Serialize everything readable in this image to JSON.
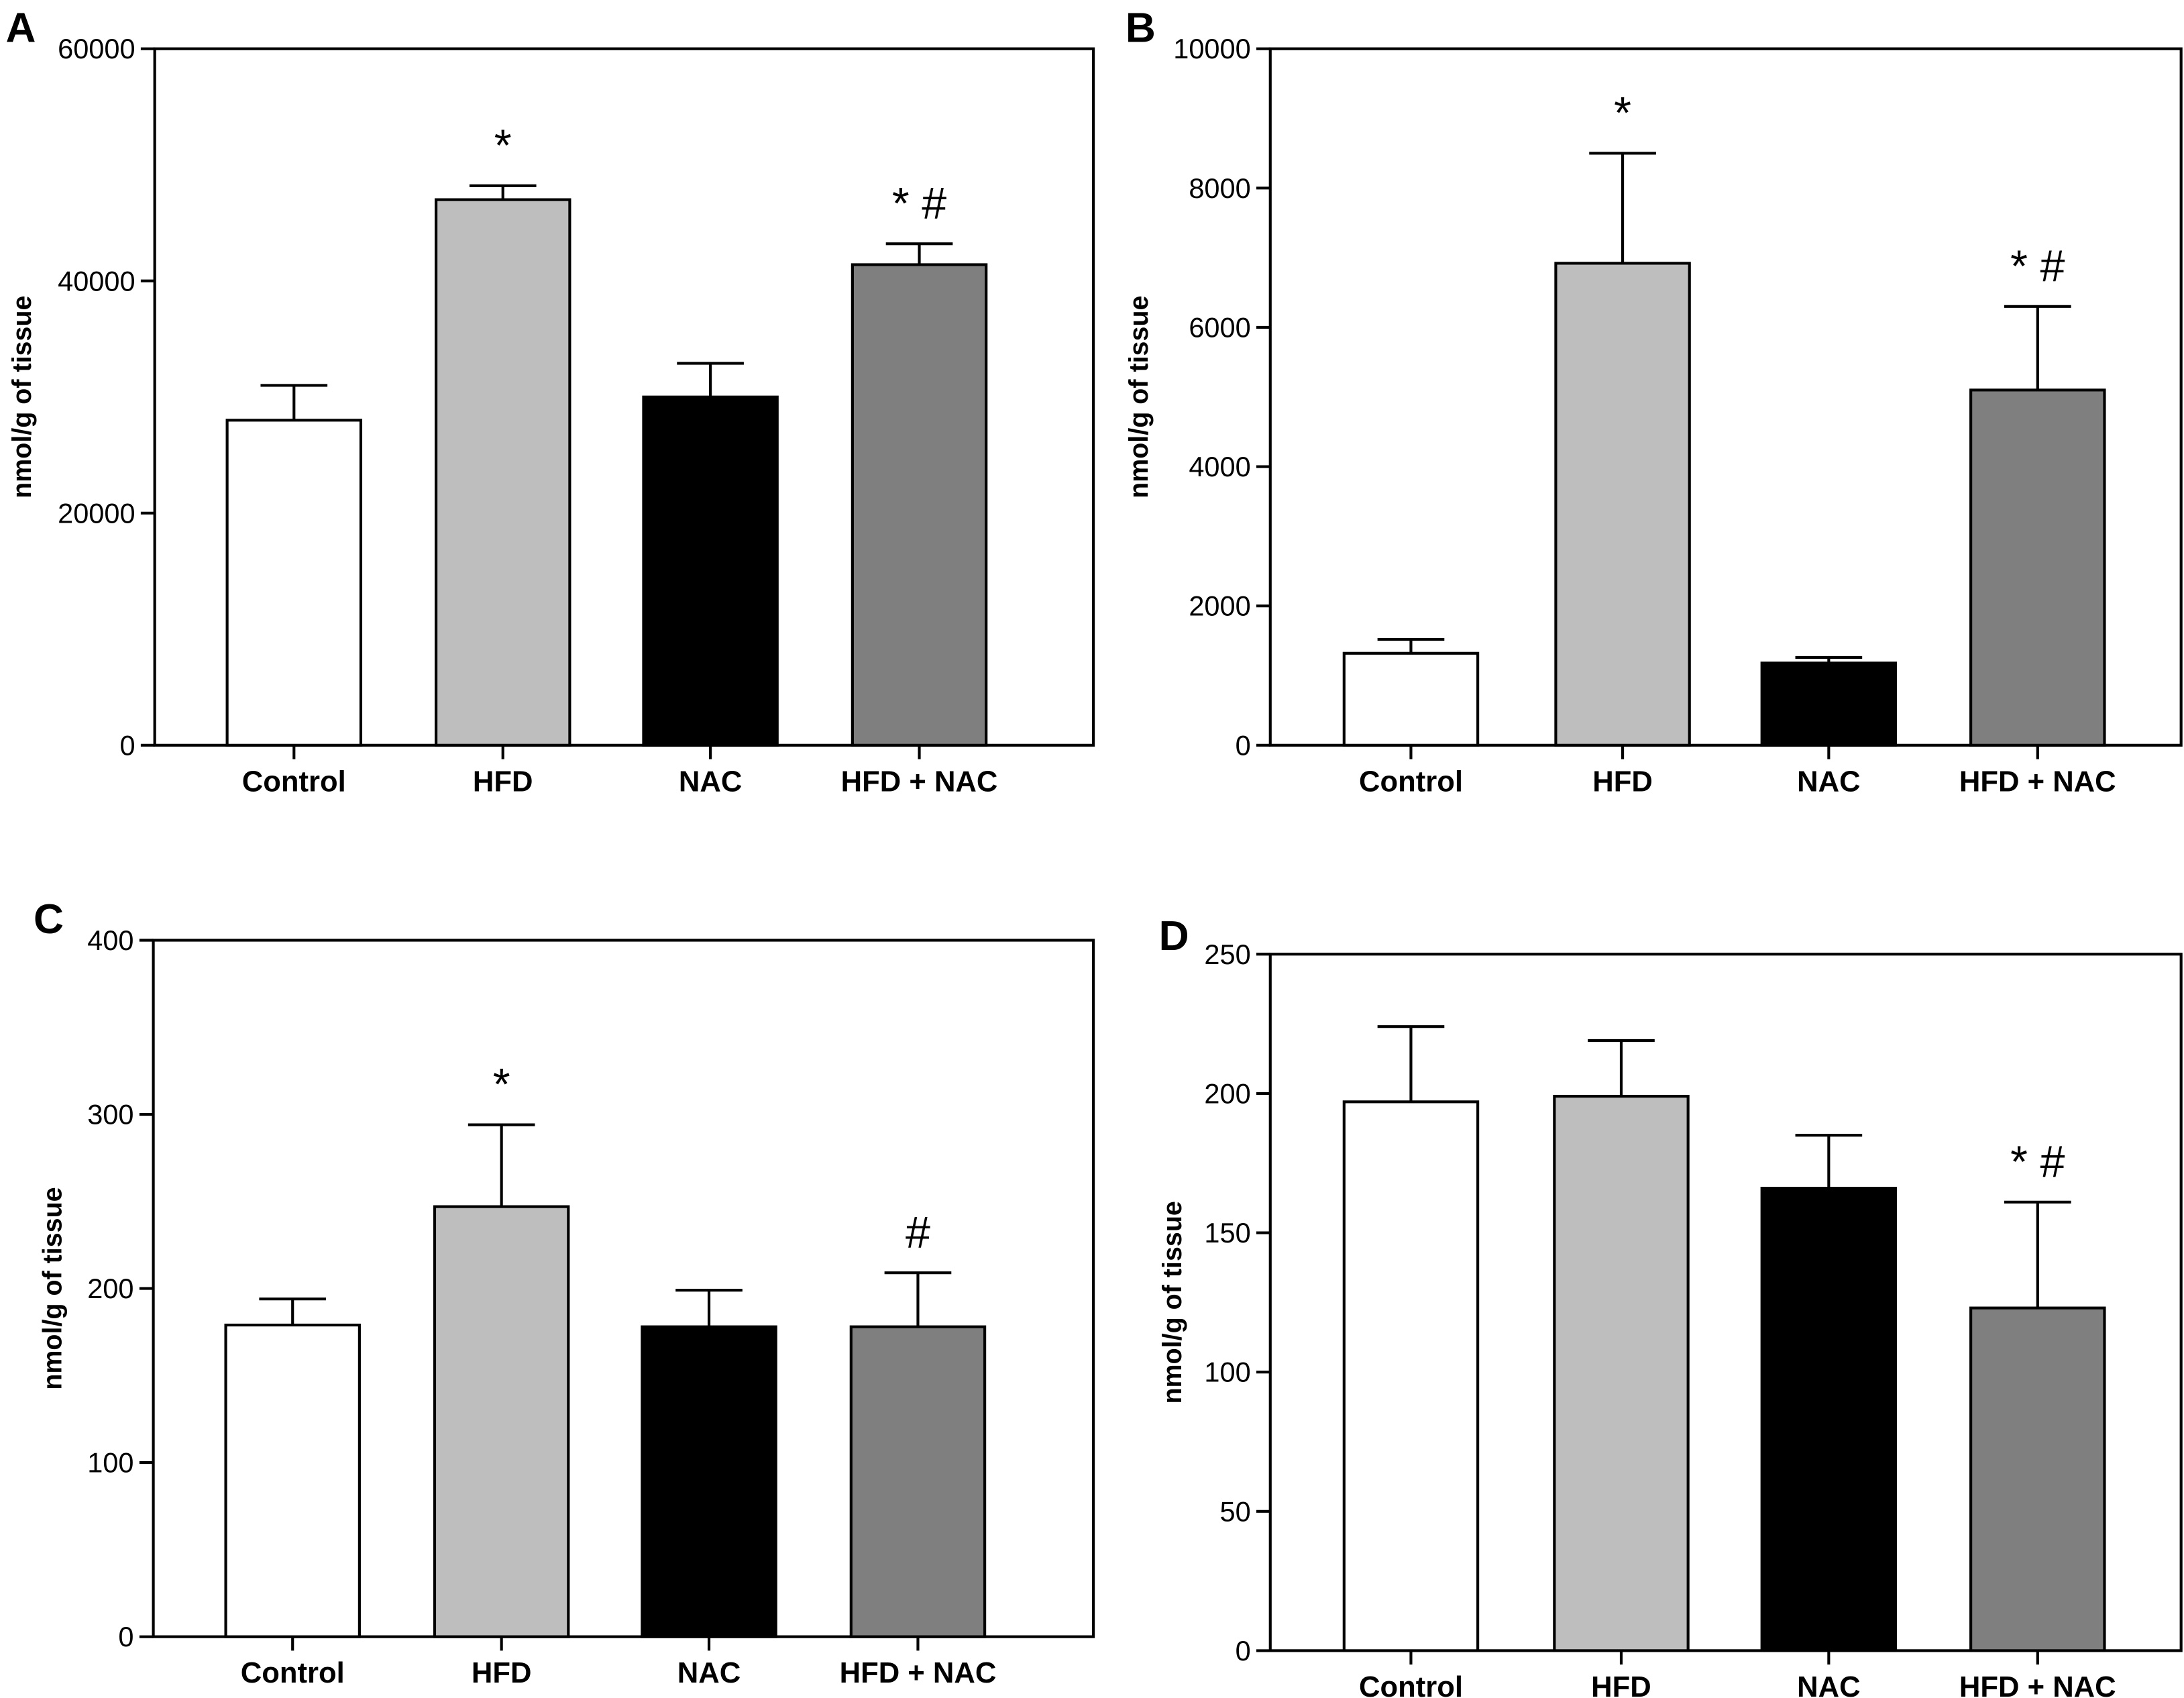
{
  "chart_data": [
    {
      "type": "bar",
      "panel_label": "A",
      "categories": [
        "Control",
        "HFD",
        "NAC",
        "HFD + NAC"
      ],
      "values": [
        28000,
        47000,
        30000,
        41400
      ],
      "error_upper": [
        31000,
        48200,
        32900,
        43200
      ],
      "annotations": [
        "",
        "*",
        "",
        "* #"
      ],
      "colors": [
        "#ffffff",
        "#bebebe",
        "#000000",
        "#7f7f7f"
      ],
      "xlabel": "",
      "ylabel": "nmol/g of tissue",
      "ylim": [
        0,
        60000
      ],
      "yticks": [
        0,
        20000,
        40000,
        60000
      ],
      "grid": false
    },
    {
      "type": "bar",
      "panel_label": "B",
      "categories": [
        "Control",
        "HFD",
        "NAC",
        "HFD + NAC"
      ],
      "values": [
        1320,
        6920,
        1180,
        5100
      ],
      "error_upper": [
        1520,
        8500,
        1260,
        6300
      ],
      "annotations": [
        "",
        "*",
        "",
        "* #"
      ],
      "colors": [
        "#ffffff",
        "#bebebe",
        "#000000",
        "#7f7f7f"
      ],
      "xlabel": "",
      "ylabel": "nmol/g of tissue",
      "ylim": [
        0,
        10000
      ],
      "yticks": [
        0,
        2000,
        4000,
        6000,
        8000,
        10000
      ],
      "grid": false
    },
    {
      "type": "bar",
      "panel_label": "C",
      "categories": [
        "Control",
        "HFD",
        "NAC",
        "HFD + NAC"
      ],
      "values": [
        179,
        247,
        178,
        178
      ],
      "error_upper": [
        194,
        294,
        199,
        209
      ],
      "annotations": [
        "",
        "*",
        "",
        "#"
      ],
      "colors": [
        "#ffffff",
        "#bebebe",
        "#000000",
        "#7f7f7f"
      ],
      "xlabel": "",
      "ylabel": "nmol/g of tissue",
      "ylim": [
        0,
        400
      ],
      "yticks": [
        0,
        100,
        200,
        300,
        400
      ],
      "grid": false
    },
    {
      "type": "bar",
      "panel_label": "D",
      "categories": [
        "Control",
        "HFD",
        "NAC",
        "HFD + NAC"
      ],
      "values": [
        197,
        199,
        166,
        123
      ],
      "error_upper": [
        224,
        219,
        185,
        161
      ],
      "annotations": [
        "",
        "",
        "",
        "* #"
      ],
      "colors": [
        "#ffffff",
        "#bebebe",
        "#000000",
        "#7f7f7f"
      ],
      "xlabel": "",
      "ylabel": "nmol/g of tissue",
      "ylim": [
        0,
        250
      ],
      "yticks": [
        0,
        50,
        100,
        150,
        200,
        250
      ],
      "grid": false
    }
  ]
}
